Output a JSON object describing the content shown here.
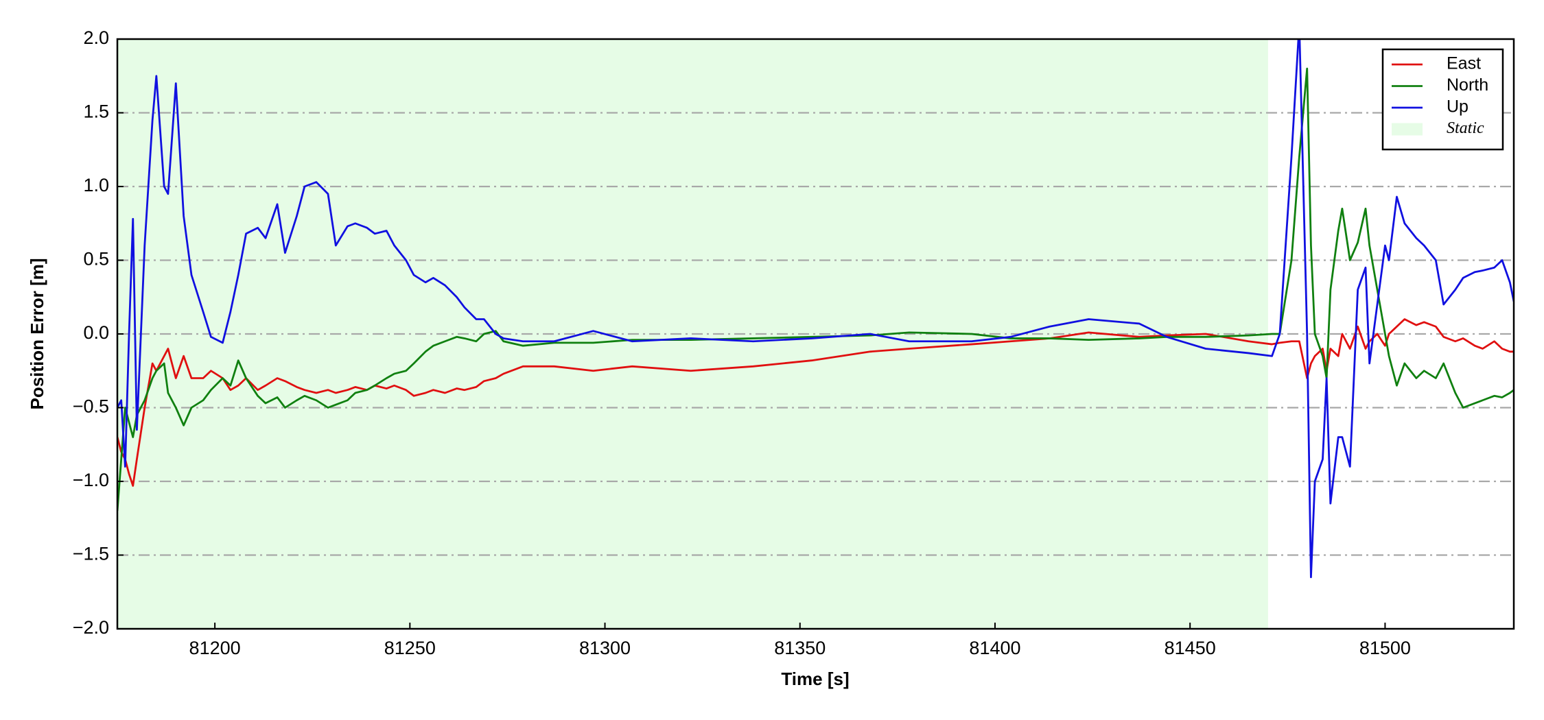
{
  "chart_data": {
    "type": "line",
    "xlabel": "Time [s]",
    "ylabel": "Position Error [m]",
    "xlim": [
      81175,
      81533
    ],
    "ylim": [
      -2.0,
      2.0
    ],
    "xticks": [
      81200,
      81250,
      81300,
      81350,
      81400,
      81450,
      81500
    ],
    "yticks": [
      {
        "value": -2.0,
        "label": "−2.0"
      },
      {
        "value": -1.5,
        "label": "−1.5"
      },
      {
        "value": -1.0,
        "label": "−1.0"
      },
      {
        "value": -0.5,
        "label": "−0.5"
      },
      {
        "value": 0.0,
        "label": "0.0"
      },
      {
        "value": 0.5,
        "label": "0.5"
      },
      {
        "value": 1.0,
        "label": "1.0"
      },
      {
        "value": 1.5,
        "label": "1.5"
      },
      {
        "value": 2.0,
        "label": "2.0"
      }
    ],
    "grid": true,
    "legend": "upper right",
    "shaded_regions": [
      {
        "name": "Static",
        "xlim": [
          81175,
          81470
        ],
        "color": "#e6fce6"
      }
    ],
    "x": [
      81175,
      81176,
      81177,
      81178,
      81179,
      81180,
      81182,
      81184,
      81185,
      81187,
      81188,
      81190,
      81192,
      81194,
      81197,
      81199,
      81202,
      81204,
      81206,
      81208,
      81211,
      81213,
      81216,
      81218,
      81221,
      81223,
      81226,
      81229,
      81231,
      81234,
      81236,
      81239,
      81241,
      81244,
      81246,
      81249,
      81251,
      81254,
      81256,
      81259,
      81262,
      81264,
      81267,
      81269,
      81272,
      81274,
      81279,
      81287,
      81297,
      81307,
      81322,
      81338,
      81353,
      81368,
      81378,
      81394,
      81404,
      81414,
      81424,
      81437,
      81444,
      81454,
      81465,
      81471,
      81473,
      81476,
      81478,
      81480,
      81481,
      81482,
      81484,
      81485,
      81486,
      81488,
      81489,
      81491,
      81493,
      81495,
      81496,
      81498,
      81500,
      81501,
      81503,
      81505,
      81508,
      81510,
      81513,
      81515,
      81518,
      81520,
      81523,
      81525,
      81528,
      81530,
      81532,
      81533
    ],
    "series": [
      {
        "name": "East",
        "color": "#e01010",
        "values": [
          -0.7,
          -0.8,
          -0.85,
          -0.95,
          -1.03,
          -0.85,
          -0.5,
          -0.2,
          -0.25,
          -0.15,
          -0.1,
          -0.3,
          -0.15,
          -0.3,
          -0.3,
          -0.25,
          -0.3,
          -0.38,
          -0.35,
          -0.3,
          -0.38,
          -0.35,
          -0.3,
          -0.32,
          -0.36,
          -0.38,
          -0.4,
          -0.38,
          -0.4,
          -0.38,
          -0.36,
          -0.38,
          -0.35,
          -0.37,
          -0.35,
          -0.38,
          -0.42,
          -0.4,
          -0.38,
          -0.4,
          -0.37,
          -0.38,
          -0.36,
          -0.32,
          -0.3,
          -0.27,
          -0.22,
          -0.22,
          -0.25,
          -0.22,
          -0.25,
          -0.22,
          -0.18,
          -0.12,
          -0.1,
          -0.07,
          -0.05,
          -0.03,
          0.01,
          -0.02,
          -0.01,
          0.0,
          -0.05,
          -0.07,
          -0.06,
          -0.05,
          -0.05,
          -0.3,
          -0.2,
          -0.15,
          -0.1,
          -0.25,
          -0.1,
          -0.15,
          0.0,
          -0.1,
          0.05,
          -0.1,
          -0.05,
          0.0,
          -0.08,
          0.0,
          0.05,
          0.1,
          0.06,
          0.08,
          0.05,
          -0.02,
          -0.05,
          -0.03,
          -0.08,
          -0.1,
          -0.05,
          -0.1,
          -0.12,
          -0.12
        ]
      },
      {
        "name": "North",
        "color": "#108010",
        "values": [
          -1.2,
          -0.85,
          -0.5,
          -0.6,
          -0.7,
          -0.55,
          -0.45,
          -0.3,
          -0.25,
          -0.2,
          -0.4,
          -0.5,
          -0.62,
          -0.5,
          -0.45,
          -0.38,
          -0.3,
          -0.35,
          -0.18,
          -0.3,
          -0.42,
          -0.47,
          -0.43,
          -0.5,
          -0.45,
          -0.42,
          -0.45,
          -0.5,
          -0.48,
          -0.45,
          -0.4,
          -0.38,
          -0.35,
          -0.3,
          -0.27,
          -0.25,
          -0.2,
          -0.12,
          -0.08,
          -0.05,
          -0.02,
          -0.03,
          -0.05,
          0.0,
          0.02,
          -0.05,
          -0.08,
          -0.06,
          -0.06,
          -0.04,
          -0.04,
          -0.03,
          -0.02,
          -0.01,
          0.01,
          0.0,
          -0.03,
          -0.03,
          -0.04,
          -0.03,
          -0.02,
          -0.02,
          -0.01,
          0.0,
          0.0,
          0.5,
          1.2,
          1.8,
          0.6,
          0.0,
          -0.15,
          -0.3,
          0.3,
          0.7,
          0.85,
          0.5,
          0.62,
          0.85,
          0.6,
          0.3,
          0.0,
          -0.15,
          -0.35,
          -0.2,
          -0.3,
          -0.25,
          -0.3,
          -0.2,
          -0.4,
          -0.5,
          -0.47,
          -0.45,
          -0.42,
          -0.43,
          -0.4,
          -0.38
        ]
      },
      {
        "name": "Up",
        "color": "#1010e0",
        "values": [
          -0.5,
          -0.45,
          -0.9,
          0.0,
          0.78,
          -0.65,
          0.6,
          1.45,
          1.75,
          1.0,
          0.95,
          1.7,
          0.8,
          0.4,
          0.15,
          -0.02,
          -0.06,
          0.15,
          0.4,
          0.68,
          0.72,
          0.65,
          0.88,
          0.55,
          0.8,
          1.0,
          1.03,
          0.95,
          0.6,
          0.73,
          0.75,
          0.72,
          0.68,
          0.7,
          0.6,
          0.5,
          0.4,
          0.35,
          0.38,
          0.33,
          0.25,
          0.18,
          0.1,
          0.1,
          0.0,
          -0.03,
          -0.05,
          -0.05,
          0.02,
          -0.05,
          -0.03,
          -0.05,
          -0.03,
          0.0,
          -0.05,
          -0.05,
          -0.02,
          0.05,
          0.1,
          0.07,
          -0.02,
          -0.1,
          -0.13,
          -0.15,
          0.0,
          1.2,
          2.1,
          0.0,
          -1.65,
          -1.0,
          -0.85,
          -0.3,
          -1.15,
          -0.7,
          -0.7,
          -0.9,
          0.3,
          0.45,
          -0.2,
          0.2,
          0.6,
          0.5,
          0.93,
          0.75,
          0.65,
          0.6,
          0.5,
          0.2,
          0.3,
          0.38,
          0.42,
          0.43,
          0.45,
          0.5,
          0.35,
          0.22
        ]
      }
    ]
  }
}
